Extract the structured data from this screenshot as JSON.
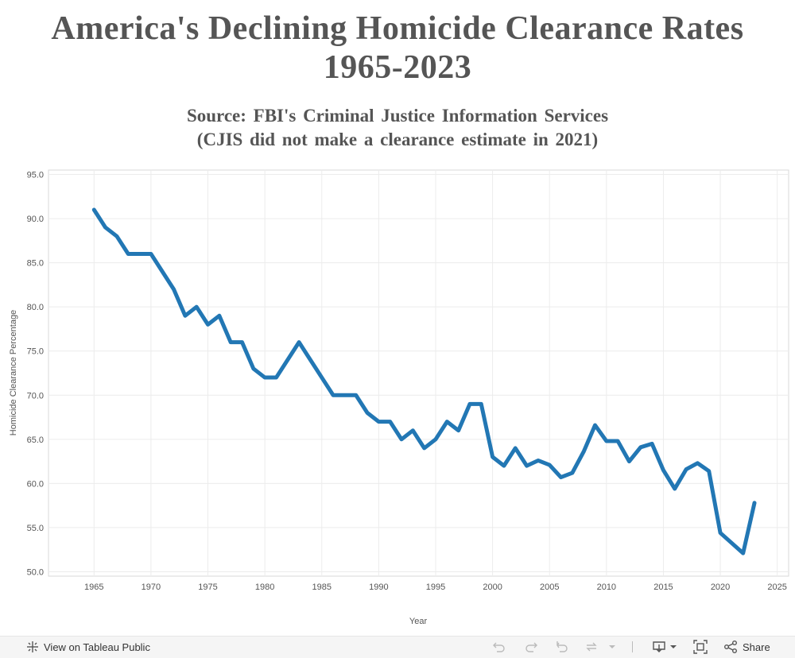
{
  "title_lines": [
    "America's Declining Homicide Clearance Rates",
    "1965-2023"
  ],
  "subtitle_lines": [
    "Source: FBI's Criminal Justice Information Services",
    "(CJIS did not make a clearance estimate in 2021)"
  ],
  "chart_data": {
    "type": "line",
    "xlabel": "Year",
    "ylabel": "Homicide Clearance Percentage",
    "xlim": [
      1961,
      2026
    ],
    "ylim": [
      49.5,
      95.5
    ],
    "x_ticks": [
      1965,
      1970,
      1975,
      1980,
      1985,
      1990,
      1995,
      2000,
      2005,
      2010,
      2015,
      2020,
      2025
    ],
    "y_ticks": [
      "50.0",
      "55.0",
      "60.0",
      "65.0",
      "70.0",
      "75.0",
      "80.0",
      "85.0",
      "90.0",
      "95.0"
    ],
    "grid": true,
    "line_color": "#2277b4",
    "series": [
      {
        "x": [
          1965,
          1966,
          1967,
          1968,
          1969,
          1970,
          1971,
          1972,
          1973,
          1974,
          1975,
          1976,
          1977,
          1978,
          1979,
          1980,
          1981,
          1982,
          1983,
          1984,
          1985,
          1986,
          1987,
          1988,
          1989,
          1990,
          1991,
          1992,
          1993,
          1994,
          1995,
          1996,
          1997,
          1998,
          1999,
          2000,
          2001,
          2002,
          2003,
          2004,
          2005,
          2006,
          2007,
          2008,
          2009,
          2010,
          2011,
          2012,
          2013,
          2014,
          2015,
          2016,
          2017,
          2018,
          2019,
          2020,
          2022,
          2023
        ],
        "values": [
          91,
          89,
          88,
          86,
          86,
          86,
          84,
          82,
          79,
          80,
          78,
          79,
          76,
          76,
          73,
          72,
          72,
          74,
          76,
          74,
          72,
          70,
          70,
          70,
          68,
          67,
          67,
          65,
          66,
          64,
          65,
          67,
          66,
          69,
          69,
          63,
          62,
          64,
          62,
          62.6,
          62.1,
          60.7,
          61.2,
          63.6,
          66.6,
          64.8,
          64.8,
          62.5,
          64.1,
          64.5,
          61.5,
          59.4,
          61.6,
          62.3,
          61.4,
          54.4,
          52.1,
          57.8
        ]
      }
    ]
  },
  "footer": {
    "view_label": "View on Tableau Public",
    "share_label": "Share"
  },
  "icons": [
    "tableau-logo-icon",
    "undo-icon",
    "redo-icon",
    "revert-icon",
    "refresh-icon",
    "dropdown-arrow-icon",
    "download-icon",
    "fullscreen-icon",
    "share-icon"
  ]
}
